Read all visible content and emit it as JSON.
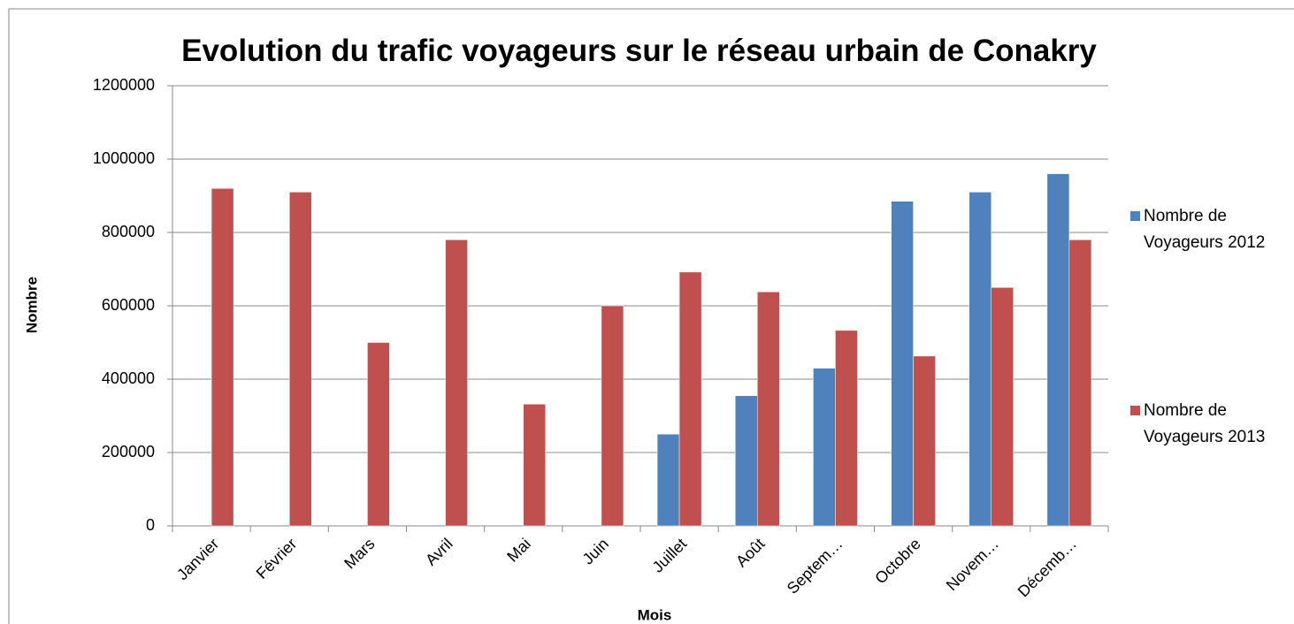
{
  "chart_data": {
    "type": "bar",
    "title": "Evolution du trafic voyageurs sur le réseau urbain de Conakry",
    "x_label": "Mois",
    "y_label": "Nombre",
    "categories": [
      "Janvier",
      "Février",
      "Mars",
      "Avril",
      "Mai",
      "Juin",
      "Juillet",
      "Août",
      "Septem…",
      "Octobre",
      "Novem…",
      "Décemb…"
    ],
    "series": [
      {
        "name": "Nombre de Voyageurs 2012",
        "color": "#4f81bd",
        "values": [
          null,
          null,
          null,
          null,
          null,
          null,
          250000,
          355000,
          430000,
          885000,
          910000,
          960000
        ]
      },
      {
        "name": "Nombre de Voyageurs 2013",
        "color": "#c0504d",
        "values": [
          920000,
          910000,
          500000,
          780000,
          332000,
          600000,
          692000,
          638000,
          533000,
          463000,
          650000,
          780000
        ]
      }
    ],
    "ylim": [
      0,
      1200000
    ],
    "yticks": [
      0,
      200000,
      400000,
      600000,
      800000,
      1000000,
      1200000
    ],
    "grid": true,
    "legend": "right"
  }
}
